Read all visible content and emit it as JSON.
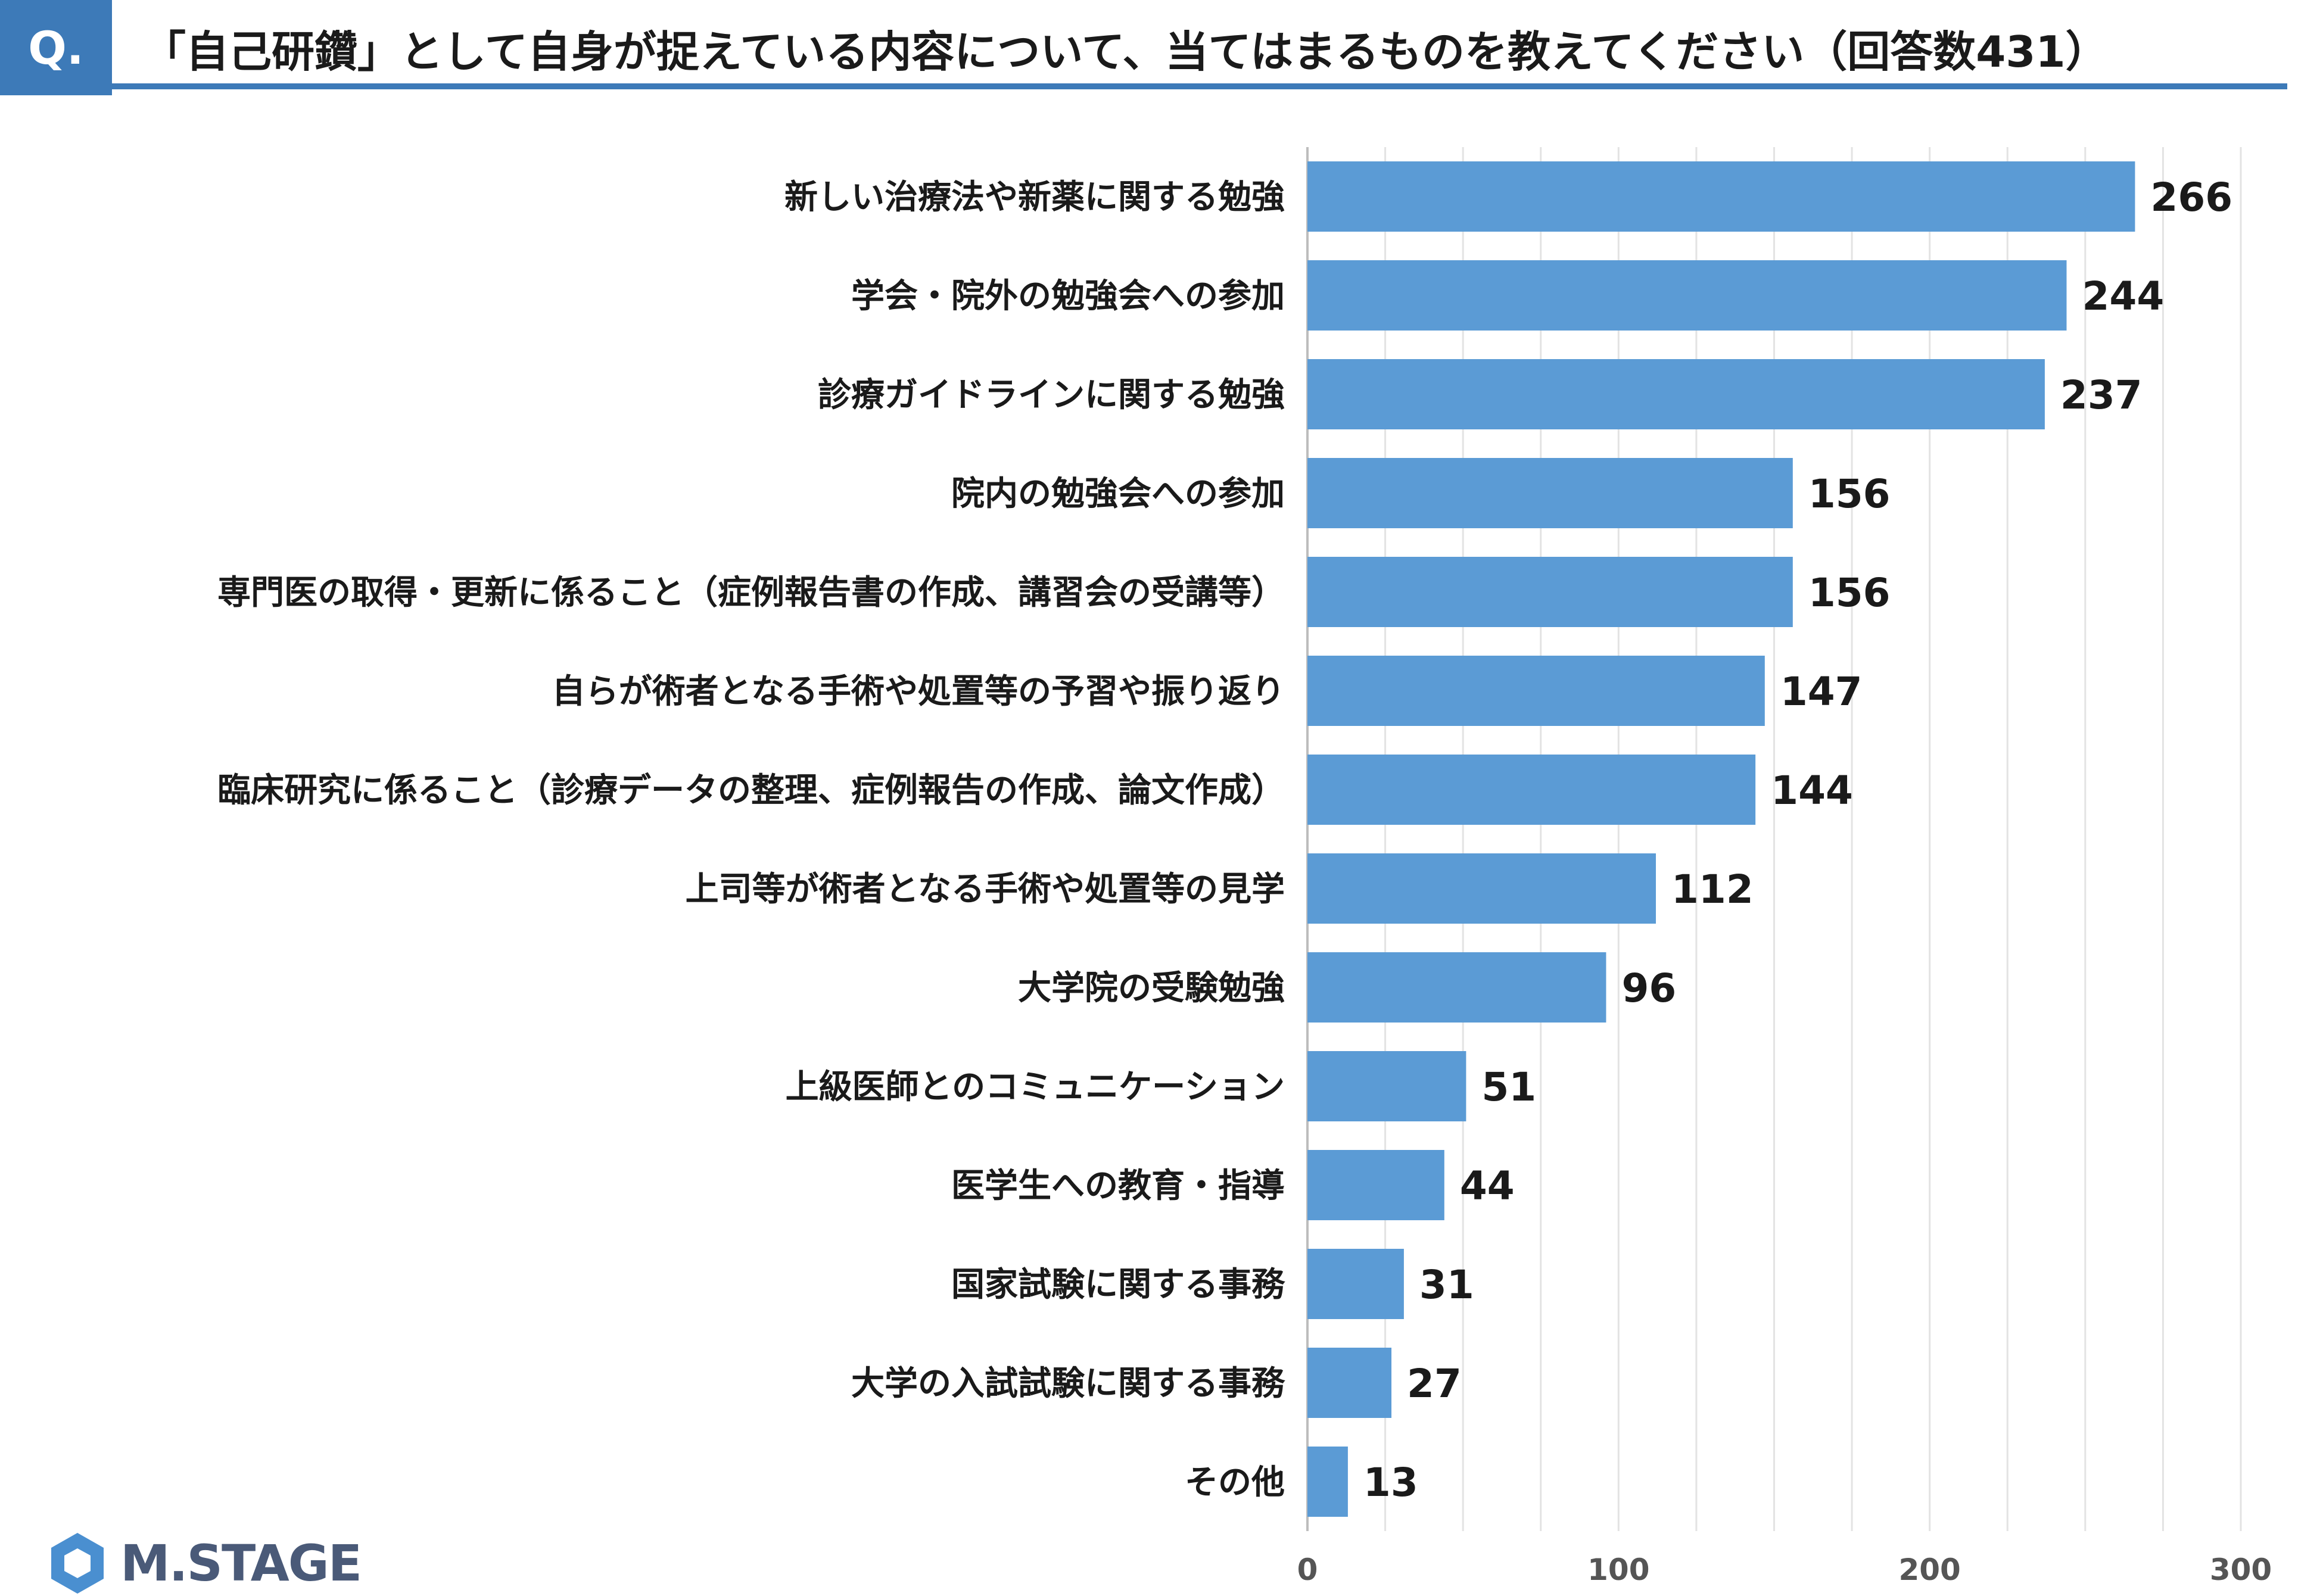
{
  "header": {
    "badge": "Q.",
    "title": "「自己研鑽」として自身が捉えている内容について、当てはまるものを教えてください（回答数431）"
  },
  "brand": {
    "logo_text": "M.STAGE",
    "colors": {
      "accent": "#3d7ab8",
      "bar": "#5b9bd5",
      "logo": "#4a5a78"
    }
  },
  "chart_data": {
    "type": "bar",
    "orientation": "horizontal",
    "categories": [
      "新しい治療法や新薬に関する勉強",
      "学会・院外の勉強会への参加",
      "診療ガイドラインに関する勉強",
      "院内の勉強会への参加",
      "専門医の取得・更新に係ること（症例報告書の作成、講習会の受講等）",
      "自らが術者となる手術や処置等の予習や振り返り",
      "臨床研究に係ること（診療データの整理、症例報告の作成、論文作成）",
      "上司等が術者となる手術や処置等の見学",
      "大学院の受験勉強",
      "上級医師とのコミュニケーション",
      "医学生への教育・指導",
      "国家試験に関する事務",
      "大学の入試試験に関する事務",
      "その他"
    ],
    "values": [
      266,
      244,
      237,
      156,
      156,
      147,
      144,
      112,
      96,
      51,
      44,
      31,
      27,
      13
    ],
    "xlim": [
      0,
      300
    ],
    "ticks": [
      0,
      100,
      200,
      300
    ],
    "grid": true,
    "data_labels": true
  }
}
